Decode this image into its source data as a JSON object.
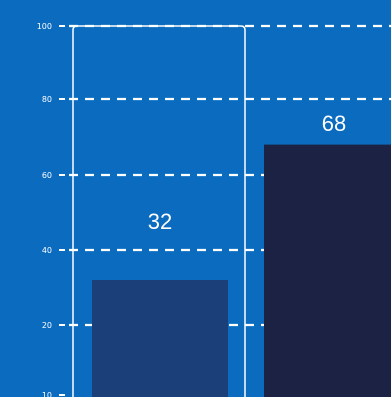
{
  "chart_data": {
    "type": "bar",
    "categories": [
      "",
      ""
    ],
    "values": [
      32,
      68
    ],
    "data_labels": [
      "32",
      "68"
    ],
    "y_ticks": [
      100,
      80,
      60,
      40,
      20,
      10
    ],
    "y_tick_labels": [
      "100",
      "80",
      "60",
      "40",
      "20",
      "10"
    ],
    "ylim": [
      10,
      100
    ],
    "grid": true,
    "legend": "none",
    "title": "",
    "xlabel": "",
    "ylabel": ""
  },
  "colors": {
    "background": "#0a6bbf",
    "bar_1": "#1b3f78",
    "bar_2": "#1c2244",
    "grid": "#ffffff",
    "text": "#ffffff"
  }
}
